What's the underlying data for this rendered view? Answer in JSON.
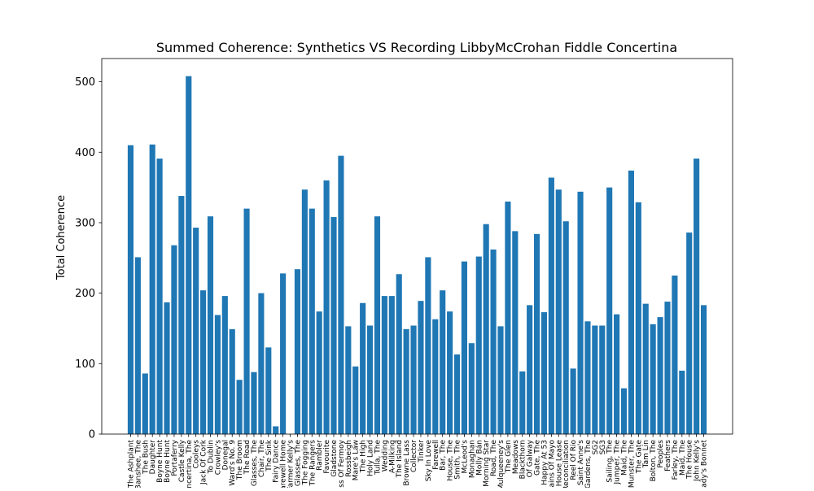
{
  "chart_data": {
    "type": "bar",
    "title": "Summed Coherence: Synthetics VS Recording LibbyMcCrohan Fiddle Concertina",
    "xlabel": "",
    "ylabel": "Total Coherence",
    "ylim": [
      0,
      533
    ],
    "yticks": [
      0,
      100,
      200,
      300,
      400,
      500
    ],
    "bar_color": "#1f77b4",
    "categories": [
      "The Ashplant",
      "Banshee, The",
      "The Bush",
      "Daughter",
      "Boyne Hunt",
      "Boyne Hunt",
      "Portaferry",
      "Castle Kelly",
      "Concertina, The",
      "Cooleys",
      "Jack Of Cork",
      "To Dublin",
      "Crowley's",
      "Donegal",
      "Ward's No. 9",
      "The Broom",
      "The Road",
      "Glasses, The",
      "Chair, The",
      "The Sink",
      "Fairy Dance",
      "Farewell Home",
      "Farmer Kelly's",
      "Glasses, The",
      "The Fogging",
      "The Rangers",
      "Rambler",
      "Favourite",
      "Gladstone",
      "Lass Of Fermoy",
      "Rossbeigh",
      "Mare's Law",
      "The High",
      "Holy Land",
      "Tulla, The",
      "Wedding",
      "A-Milking",
      "The Island",
      "Browne Lass",
      "Collector",
      "Tinker",
      "Sky In Love",
      "Farewell",
      "Bar, The",
      "House, The",
      "Smith, The",
      "McLeod's",
      "Monaghan",
      "Molly Bán",
      "Morning Star",
      "Road, The",
      "Mulqueeney's",
      "The Glen",
      "Meadows",
      "Blackthorn",
      "Of Galway",
      "Gate, The",
      "Happy At 53",
      "Plains Of Mayo",
      "House Lease",
      "Reconciliation",
      "Reel Of Rio",
      "Saint Anne's",
      "Gardens, The",
      "SG2",
      "SG3",
      "Sailing, The",
      "Jumper, The",
      "Maid, The",
      "Munster, The",
      "The Gate",
      "Tam Lin",
      "Bolton, The",
      "Peoples",
      "Feathers",
      "Farley, The",
      "Maid, The",
      "The House",
      "John Kelly's",
      "Lady's Bonnet"
    ],
    "values": [
      410,
      251,
      86,
      411,
      391,
      187,
      268,
      338,
      508,
      293,
      204,
      309,
      169,
      196,
      149,
      77,
      320,
      88,
      200,
      123,
      11,
      228,
      0,
      234,
      347,
      320,
      174,
      360,
      308,
      395,
      153,
      96,
      186,
      154,
      309,
      196,
      196,
      227,
      149,
      154,
      189,
      251,
      163,
      204,
      174,
      113,
      245,
      129,
      252,
      298,
      262,
      153,
      330,
      288,
      89,
      183,
      284,
      173,
      364,
      347,
      302,
      93,
      344,
      160,
      154,
      154,
      350,
      170,
      65,
      374,
      329,
      185,
      156,
      166,
      188,
      225,
      90,
      286,
      391,
      183
    ]
  }
}
